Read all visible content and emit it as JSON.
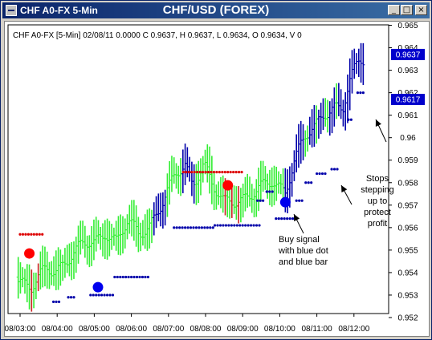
{
  "window": {
    "title": "CHF A0-FX 5-Min",
    "heading": "CHF/USD (FOREX)",
    "buttons": {
      "minimize": "_",
      "maximize": "□",
      "close": "×"
    }
  },
  "chart_data": {
    "type": "bar",
    "style": "ohlc-bars-with-dot-indicators",
    "info_line": "CHF A0-FX [5-Min] 02/08/11  0.0000  C 0.9637, H 0.9637, L 0.9634, O 0.9634, V 0",
    "y_ticks": [
      "0.965",
      "0.964",
      "0.963",
      "0.962",
      "0.961",
      "0.96",
      "0.959",
      "0.958",
      "0.957",
      "0.956",
      "0.955",
      "0.954",
      "0.953",
      "0.952"
    ],
    "y_tick_values": [
      0.965,
      0.964,
      0.963,
      0.962,
      0.961,
      0.96,
      0.959,
      0.958,
      0.957,
      0.956,
      0.955,
      0.954,
      0.953,
      0.952
    ],
    "ylim": [
      0.952,
      0.965
    ],
    "x_ticks": [
      "08/03:00",
      "08/04:00",
      "08/05:00",
      "08/06:00",
      "08/07:00",
      "08/08:00",
      "08/09:00",
      "08/10:00",
      "08/11:00",
      "08/12:00"
    ],
    "price_labels": [
      {
        "text": "0.9637",
        "value": 0.9637
      },
      {
        "text": "0.9617",
        "value": 0.9617
      }
    ],
    "colors": {
      "bull": "#33ee33",
      "bear": "#cc2222",
      "buy": "#0000aa",
      "stop": "#0000aa",
      "sell": "#dd0000",
      "marker_red": "#ff0000",
      "marker_blue": "#0000ee",
      "label_bg": "#0000cc"
    },
    "series": [
      {
        "name": "OHLC",
        "role": "price"
      },
      {
        "name": "Red dots",
        "role": "upper-stop"
      },
      {
        "name": "Blue dots",
        "role": "lower-stop"
      }
    ],
    "markers": [
      {
        "type": "sell",
        "x_hour": 3.25,
        "value": 0.95485
      },
      {
        "type": "buy",
        "x_hour": 5.1,
        "value": 0.95335
      },
      {
        "type": "sell",
        "x_hour": 8.6,
        "value": 0.95788
      },
      {
        "type": "buy",
        "x_hour": 10.15,
        "value": 0.95713
      }
    ],
    "red_dot_segments": [
      {
        "x0": 3.0,
        "x1": 3.6,
        "value": 0.9557
      },
      {
        "x0": 7.4,
        "x1": 9.0,
        "value": 0.95847
      }
    ],
    "blue_dot_segments": [
      {
        "x0": 3.9,
        "x1": 4.05,
        "value": 0.9527
      },
      {
        "x0": 4.3,
        "x1": 4.45,
        "value": 0.9529
      },
      {
        "x0": 4.9,
        "x1": 5.5,
        "value": 0.953
      },
      {
        "x0": 5.55,
        "x1": 6.45,
        "value": 0.9538
      },
      {
        "x0": 7.15,
        "x1": 8.2,
        "value": 0.956
      },
      {
        "x0": 8.25,
        "x1": 9.5,
        "value": 0.9561
      },
      {
        "x0": 9.4,
        "x1": 9.55,
        "value": 0.9572
      },
      {
        "x0": 9.65,
        "x1": 9.8,
        "value": 0.9576
      },
      {
        "x0": 9.9,
        "x1": 10.4,
        "value": 0.9564
      },
      {
        "x0": 10.45,
        "x1": 10.6,
        "value": 0.9572
      },
      {
        "x0": 10.7,
        "x1": 10.9,
        "value": 0.958
      },
      {
        "x0": 11.0,
        "x1": 11.25,
        "value": 0.9584
      },
      {
        "x0": 11.4,
        "x1": 11.55,
        "value": 0.9586
      },
      {
        "x0": 11.85,
        "x1": 11.95,
        "value": 0.9608
      },
      {
        "x0": 12.1,
        "x1": 12.25,
        "value": 0.962
      }
    ],
    "annotations": [
      {
        "lines": [
          "Buy signal",
          "with blue dot",
          "and blue bar"
        ]
      },
      {
        "lines": [
          "Stops",
          "stepping",
          "up to",
          "protect",
          "profit"
        ]
      }
    ]
  }
}
